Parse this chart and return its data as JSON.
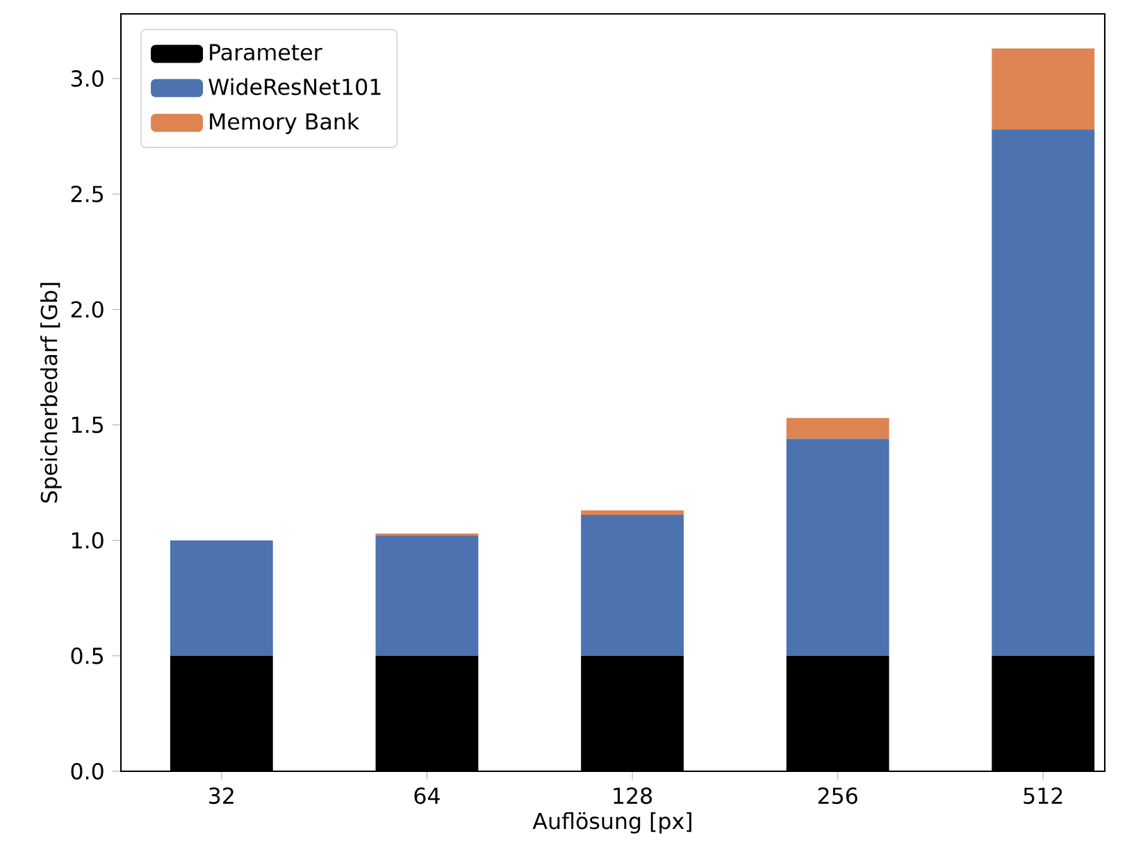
{
  "chart_data": {
    "type": "bar",
    "stacked": true,
    "xlabel": "Auflösung [px]",
    "ylabel": "Speicherbedarf [Gb]",
    "categories": [
      "32",
      "64",
      "128",
      "256",
      "512"
    ],
    "series": [
      {
        "name": "Parameter",
        "color": "#000000",
        "values": [
          0.5,
          0.5,
          0.5,
          0.5,
          0.5
        ]
      },
      {
        "name": "WideResNet101",
        "color": "#4c72b0",
        "values": [
          0.5,
          0.52,
          0.61,
          0.94,
          2.28
        ]
      },
      {
        "name": "Memory Bank",
        "color": "#dd8452",
        "values": [
          0,
          0.01,
          0.02,
          0.09,
          0.35
        ]
      }
    ],
    "ylim": [
      0,
      3.28
    ],
    "yticks": [
      {
        "value": 0,
        "label": "0.0"
      },
      {
        "value": 0.5,
        "label": "0.5"
      },
      {
        "value": 1,
        "label": "1.0"
      },
      {
        "value": 1.5,
        "label": "1.5"
      },
      {
        "value": 2,
        "label": "2.0"
      },
      {
        "value": 2.5,
        "label": "2.5"
      },
      {
        "value": 3,
        "label": "3.0"
      }
    ],
    "legend": "top left",
    "grid": false
  }
}
